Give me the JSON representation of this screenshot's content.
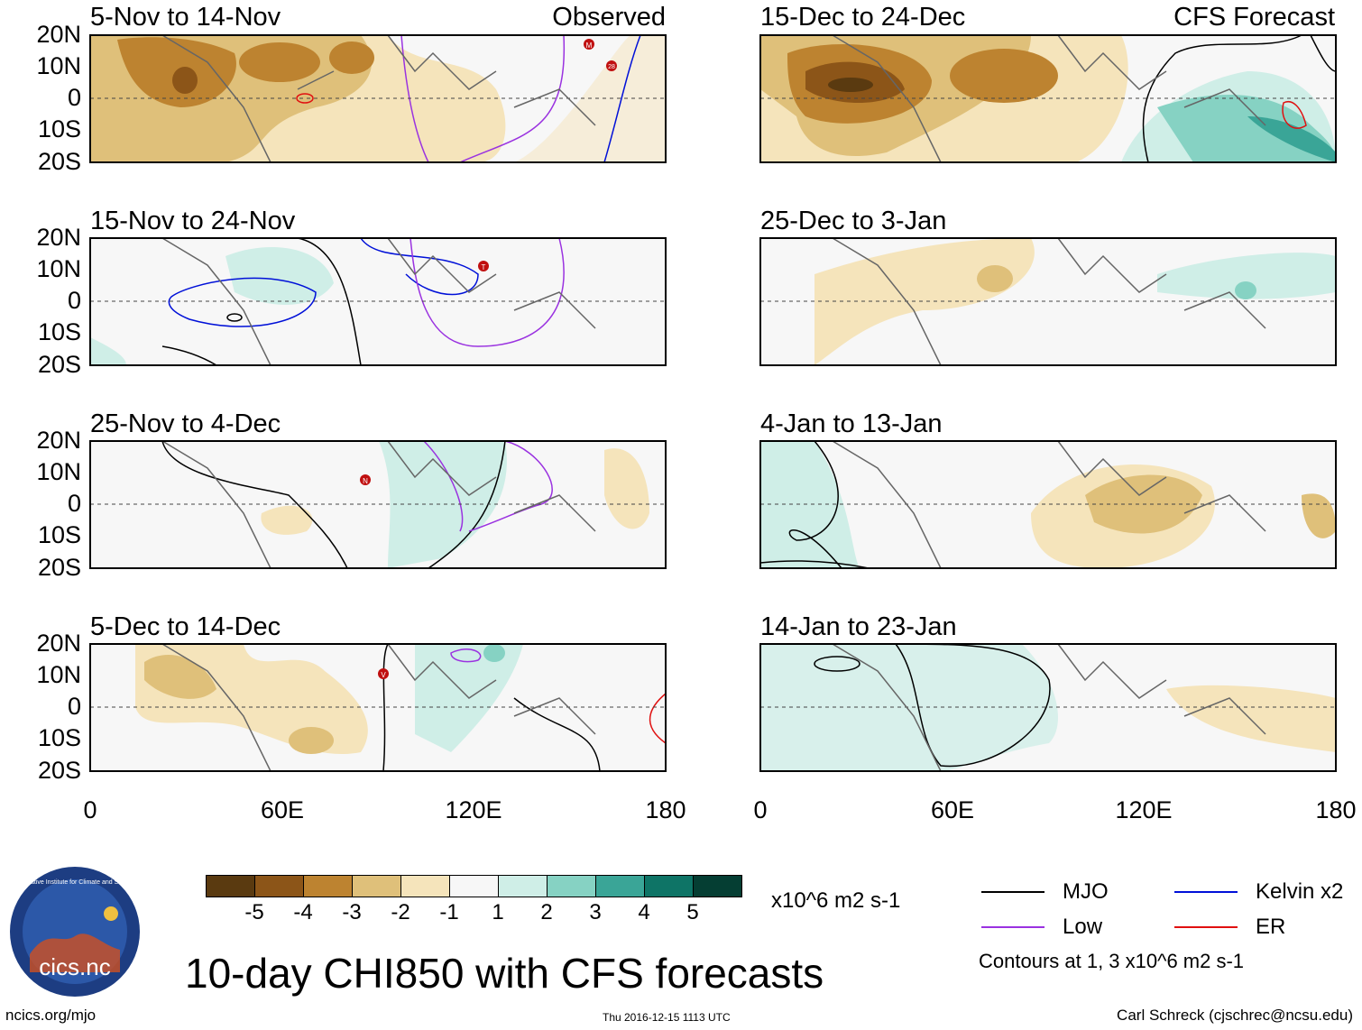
{
  "figure": {
    "title": "10-day CHI850 with CFS forecasts",
    "observed_label": "Observed",
    "forecast_label": "CFS Forecast"
  },
  "axes": {
    "lat_ticks": [
      "20N",
      "10N",
      "0",
      "10S",
      "20S"
    ],
    "lon_ticks": [
      "0",
      "60E",
      "120E",
      "180"
    ]
  },
  "panels_left": [
    {
      "period": "5-Nov to 14-Nov"
    },
    {
      "period": "15-Nov to 24-Nov"
    },
    {
      "period": "25-Nov to 4-Dec"
    },
    {
      "period": "5-Dec to 14-Dec"
    }
  ],
  "panels_right": [
    {
      "period": "15-Dec to 24-Dec"
    },
    {
      "period": "25-Dec to 3-Jan"
    },
    {
      "period": "4-Jan to 13-Jan"
    },
    {
      "period": "14-Jan to 23-Jan"
    }
  ],
  "storms": [
    {
      "panel": 0,
      "letter": "M"
    },
    {
      "panel": 0,
      "letter": "28"
    },
    {
      "panel": 1,
      "letter": "T"
    },
    {
      "panel": 2,
      "letter": "N"
    },
    {
      "panel": 3,
      "letter": "V"
    }
  ],
  "colorbar": {
    "ticks": [
      "-5",
      "-4",
      "-3",
      "-2",
      "-1",
      "1",
      "2",
      "3",
      "4",
      "5"
    ],
    "colors": [
      "#5a3a10",
      "#8c5518",
      "#bd8330",
      "#dfc07a",
      "#f5e4bb",
      "#f7f7f7",
      "#cfeee7",
      "#86d2c3",
      "#3aa597",
      "#0e7466",
      "#053e33"
    ],
    "units": "x10^6 m2 s-1"
  },
  "legend": {
    "items": [
      {
        "label": "MJO",
        "color": "#000000"
      },
      {
        "label": "Kelvin x2",
        "color": "#0010d8"
      },
      {
        "label": "Low",
        "color": "#9a32e0"
      },
      {
        "label": "ER",
        "color": "#e01010"
      }
    ],
    "contour_note": "Contours at 1, 3 x10^6 m2 s-1"
  },
  "footer": {
    "url": "ncics.org/mjo",
    "timestamp": "Thu 2016-12-15 1113 UTC",
    "author": "Carl Schreck (cjschrec@ncsu.edu)"
  },
  "logo": {
    "text": "cics.nc",
    "arc_text": "Cooperative Institute for Climate and Satellites"
  }
}
